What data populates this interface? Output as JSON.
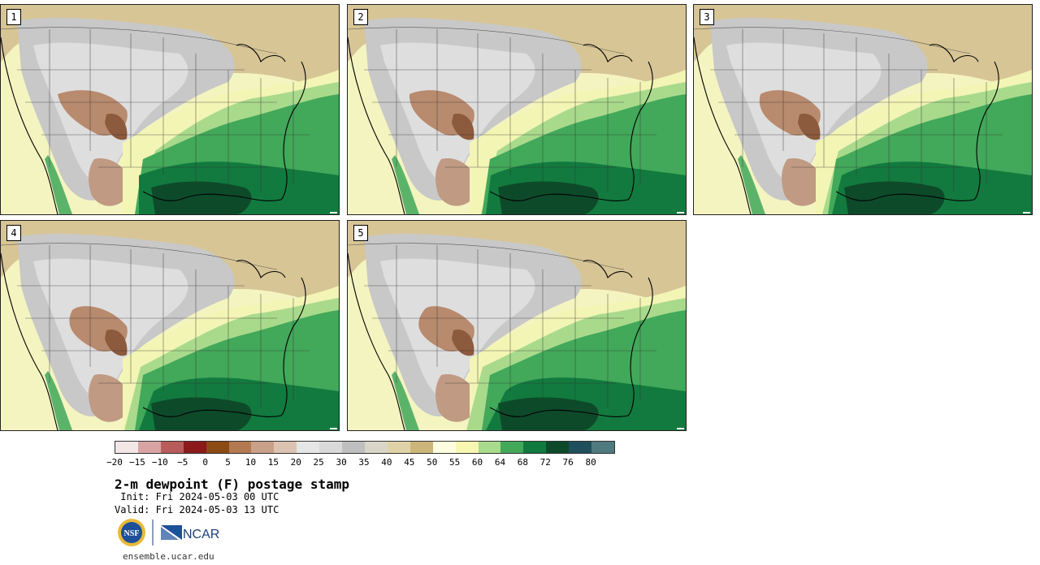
{
  "panels": [
    {
      "label": "1",
      "tone": 0
    },
    {
      "label": "2",
      "tone": 1
    },
    {
      "label": "3",
      "tone": 2
    },
    {
      "label": "4",
      "tone": 3
    },
    {
      "label": "5",
      "tone": 4
    }
  ],
  "colorbar": {
    "colors": [
      "#f2e6e6",
      "#d9a3a3",
      "#b85c5c",
      "#8c1a1a",
      "#8c4a14",
      "#b37a52",
      "#c9a088",
      "#dcc2b0",
      "#e6e6e6",
      "#d9d9d9",
      "#bfbfbf",
      "#d9d6c8",
      "#e0d2a8",
      "#ccb57a",
      "#fdfde0",
      "#f7f7b2",
      "#a8dc8c",
      "#43a85a",
      "#107a3e",
      "#0c4a2a",
      "#1f4f5c",
      "#4f7a80"
    ],
    "tick_labels": [
      "−20",
      "−15",
      "−10",
      "−5",
      "0",
      "5",
      "10",
      "15",
      "20",
      "25",
      "30",
      "35",
      "40",
      "45",
      "50",
      "55",
      "60",
      "64",
      "68",
      "72",
      "76",
      "80"
    ]
  },
  "title": "2-m dewpoint (F) postage stamp",
  "init_text": " Init: Fri 2024-05-03 00 UTC",
  "valid_text": "Valid: Fri 2024-05-03 13 UTC",
  "logos": {
    "nsf": "NSF",
    "ncar": "NCAR"
  },
  "url": "ensemble.ucar.edu"
}
